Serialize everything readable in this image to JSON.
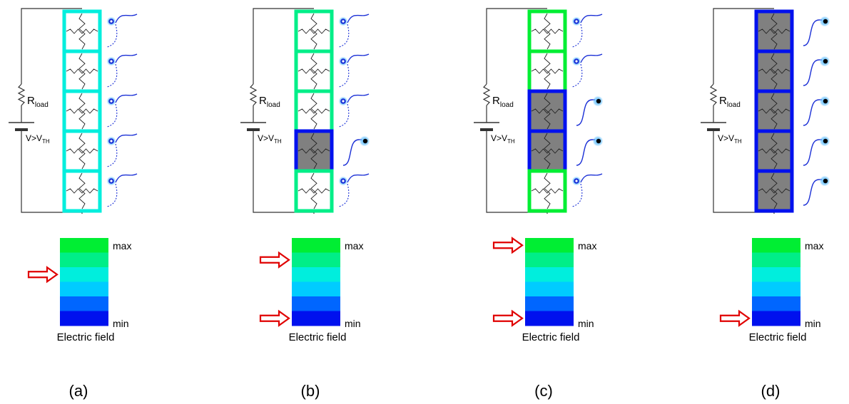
{
  "colors": {
    "wire": "#333333",
    "resistor": "#222222",
    "conducting_fill": "#808080",
    "insulating_fill": "#ffffff",
    "wave_line": "#1a2fd6",
    "wave_dot": "#000000",
    "wave_ring": "#2fa8ff",
    "arrow": "#e00000",
    "scale": [
      "#00ee33",
      "#00ee88",
      "#00eedd",
      "#00ccff",
      "#0066ff",
      "#0011ee"
    ]
  },
  "circuit": {
    "resistor_label_main": "R",
    "resistor_label_sub": "load",
    "battery_label_main": "V>V",
    "battery_label_sub": "TH"
  },
  "scale_labels": {
    "max": "max",
    "min": "min",
    "title": "Electric field"
  },
  "panels": [
    {
      "caption": "(a)",
      "cells": [
        "ins",
        "ins",
        "ins",
        "ins",
        "ins"
      ],
      "cell_field_level": [
        2,
        2,
        2,
        2,
        2
      ],
      "arrow_levels": [
        2
      ]
    },
    {
      "caption": "(b)",
      "cells": [
        "ins",
        "ins",
        "ins",
        "cond",
        "ins"
      ],
      "cell_field_level": [
        1,
        1,
        1,
        5,
        1
      ],
      "arrow_levels": [
        1,
        5
      ]
    },
    {
      "caption": "(c)",
      "cells": [
        "ins",
        "ins",
        "cond",
        "cond",
        "ins"
      ],
      "cell_field_level": [
        0,
        0,
        5,
        5,
        0
      ],
      "arrow_levels": [
        0,
        5
      ]
    },
    {
      "caption": "(d)",
      "cells": [
        "cond",
        "cond",
        "cond",
        "cond",
        "cond"
      ],
      "cell_field_level": [
        5,
        5,
        5,
        5,
        5
      ],
      "arrow_levels": [
        5
      ]
    }
  ]
}
